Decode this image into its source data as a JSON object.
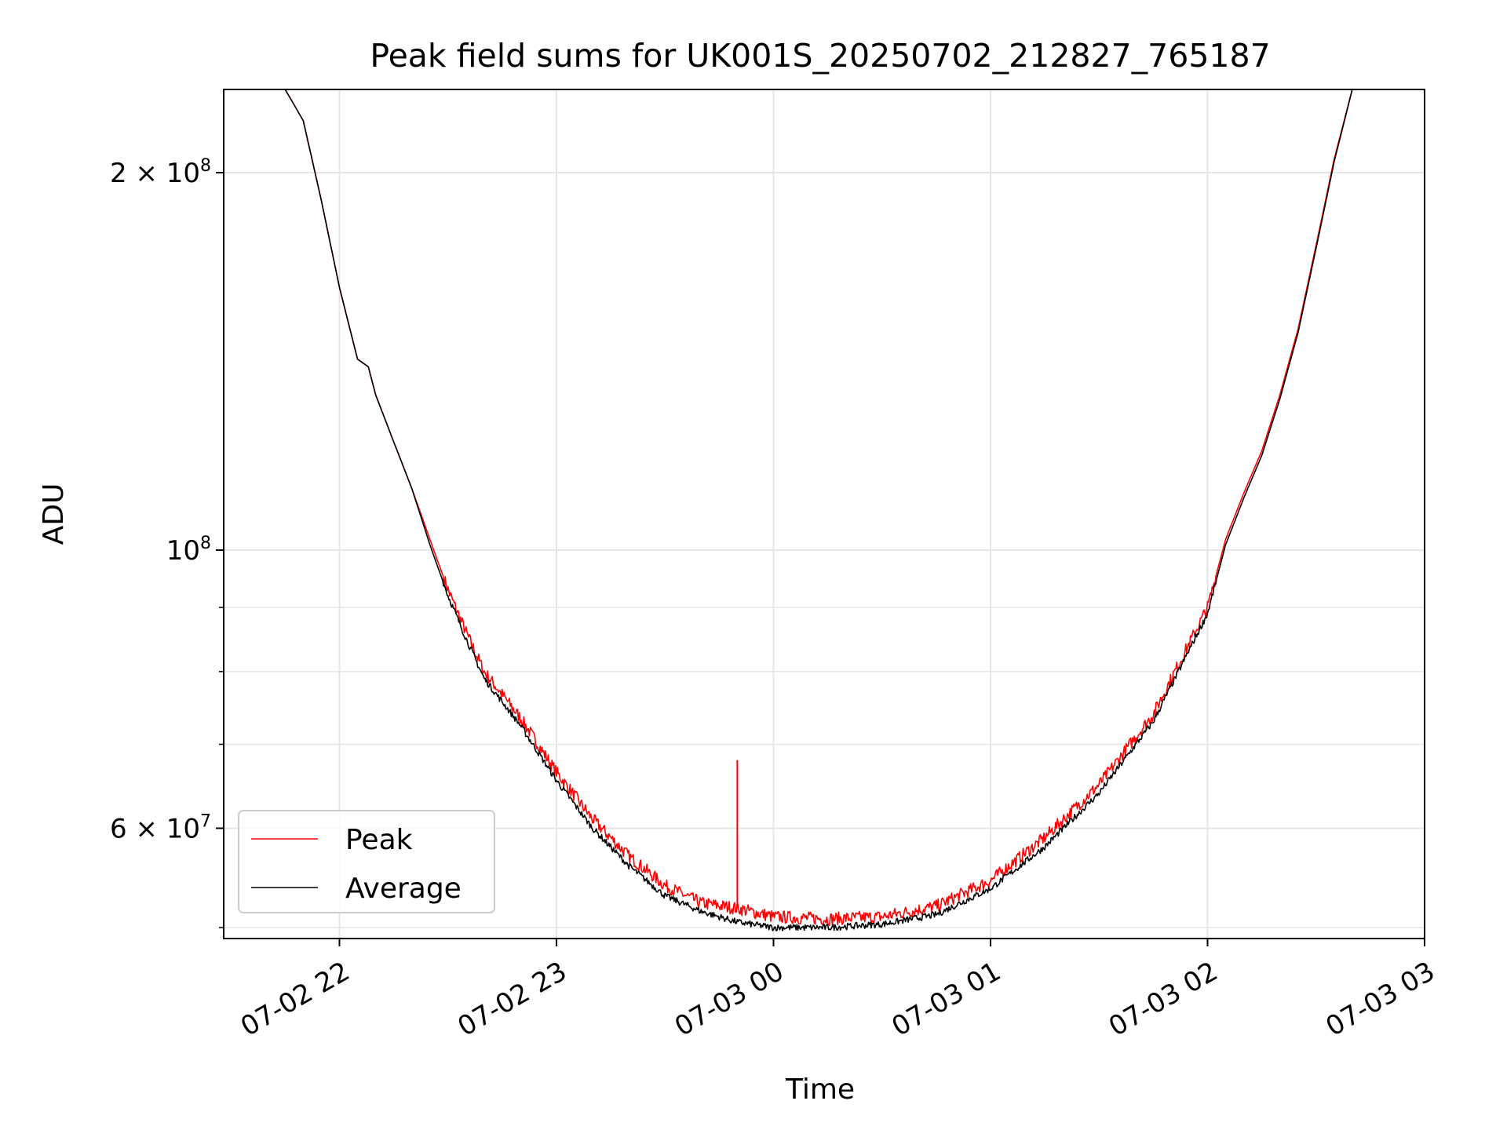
{
  "chart_data": {
    "type": "line",
    "title": "Peak field sums for UK001S_20250702_212827_765187",
    "xlabel": "Time",
    "ylabel": "ADU",
    "yscale": "log",
    "x_tick_labels": [
      "07-02 22",
      "07-02 23",
      "07-03 00",
      "07-03 01",
      "07-03 02",
      "07-03 03"
    ],
    "y_tick_labels": [
      {
        "mantissa": "6",
        "times": "×",
        "base": "10",
        "exp": "7",
        "value": 60000000
      },
      {
        "mantissa": "",
        "times": "",
        "base": "10",
        "exp": "8",
        "value": 100000000
      },
      {
        "mantissa": "2",
        "times": "×",
        "base": "10",
        "exp": "8",
        "value": 200000000
      }
    ],
    "x_range": [
      "2025-07-02 21:28",
      "2025-07-03 03:00"
    ],
    "y_range": [
      49000000,
      233000000
    ],
    "grid": true,
    "legend_position": "lower left",
    "legend": [
      "Peak",
      "Average"
    ],
    "colors": {
      "Peak": "#ff0000",
      "Average": "#000000",
      "grid": "#e6e6e6"
    },
    "series": [
      {
        "name": "Peak",
        "color": "#ff0000",
        "x": [
          "2025-07-02 21:28",
          "2025-07-02 21:45",
          "2025-07-02 21:50",
          "2025-07-02 21:55",
          "2025-07-02 22:00",
          "2025-07-02 22:05",
          "2025-07-02 22:08",
          "2025-07-02 22:10",
          "2025-07-02 22:15",
          "2025-07-02 22:20",
          "2025-07-02 22:25",
          "2025-07-02 22:30",
          "2025-07-02 22:35",
          "2025-07-02 22:40",
          "2025-07-02 22:50",
          "2025-07-02 23:00",
          "2025-07-02 23:10",
          "2025-07-02 23:20",
          "2025-07-02 23:30",
          "2025-07-02 23:40",
          "2025-07-02 23:50",
          "2025-07-03 00:00",
          "2025-07-03 00:15",
          "2025-07-03 00:30",
          "2025-07-03 00:45",
          "2025-07-03 01:00",
          "2025-07-03 01:15",
          "2025-07-03 01:30",
          "2025-07-03 01:45",
          "2025-07-03 02:00",
          "2025-07-03 02:05",
          "2025-07-03 02:10",
          "2025-07-03 02:15",
          "2025-07-03 02:20",
          "2025-07-03 02:25",
          "2025-07-03 02:30",
          "2025-07-03 02:35",
          "2025-07-03 02:40",
          "2025-07-03 03:00"
        ],
        "values": [
          233000000,
          233000000,
          220000000,
          190000000,
          162000000,
          142000000,
          140000000,
          133000000,
          122000000,
          112000000,
          102000000,
          93000000,
          86000000,
          80000000,
          73500000,
          66500000,
          61000000,
          57000000,
          54000000,
          52300000,
          51800000,
          51000000,
          50800000,
          51000000,
          52000000,
          54500000,
          59000000,
          65000000,
          74000000,
          90000000,
          102000000,
          111000000,
          120000000,
          133000000,
          150000000,
          175000000,
          205000000,
          233000000,
          233000000
        ],
        "spike": {
          "x": "2025-07-02 23:50",
          "value": 68000000
        }
      },
      {
        "name": "Average",
        "color": "#000000",
        "x": [
          "2025-07-02 21:28",
          "2025-07-02 21:45",
          "2025-07-02 21:50",
          "2025-07-02 21:55",
          "2025-07-02 22:00",
          "2025-07-02 22:05",
          "2025-07-02 22:08",
          "2025-07-02 22:10",
          "2025-07-02 22:15",
          "2025-07-02 22:20",
          "2025-07-02 22:25",
          "2025-07-02 22:30",
          "2025-07-02 22:35",
          "2025-07-02 22:40",
          "2025-07-02 22:50",
          "2025-07-02 23:00",
          "2025-07-02 23:10",
          "2025-07-02 23:20",
          "2025-07-02 23:30",
          "2025-07-02 23:40",
          "2025-07-02 23:50",
          "2025-07-03 00:00",
          "2025-07-03 00:15",
          "2025-07-03 00:30",
          "2025-07-03 00:45",
          "2025-07-03 01:00",
          "2025-07-03 01:15",
          "2025-07-03 01:30",
          "2025-07-03 01:45",
          "2025-07-03 02:00",
          "2025-07-03 02:05",
          "2025-07-03 02:10",
          "2025-07-03 02:15",
          "2025-07-03 02:20",
          "2025-07-03 02:25",
          "2025-07-03 02:30",
          "2025-07-03 02:35",
          "2025-07-03 02:40",
          "2025-07-03 03:00"
        ],
        "values": [
          233000000,
          233000000,
          220000000,
          190000000,
          162000000,
          142000000,
          140000000,
          133000000,
          122000000,
          112000000,
          101000000,
          92000000,
          85000000,
          79000000,
          72500000,
          65500000,
          60000000,
          56000000,
          53000000,
          51500000,
          50500000,
          50000000,
          50000000,
          50300000,
          51200000,
          53700000,
          58000000,
          64000000,
          73000000,
          89000000,
          101000000,
          110000000,
          119000000,
          132000000,
          149000000,
          174000000,
          204000000,
          233000000,
          233000000
        ]
      }
    ]
  }
}
